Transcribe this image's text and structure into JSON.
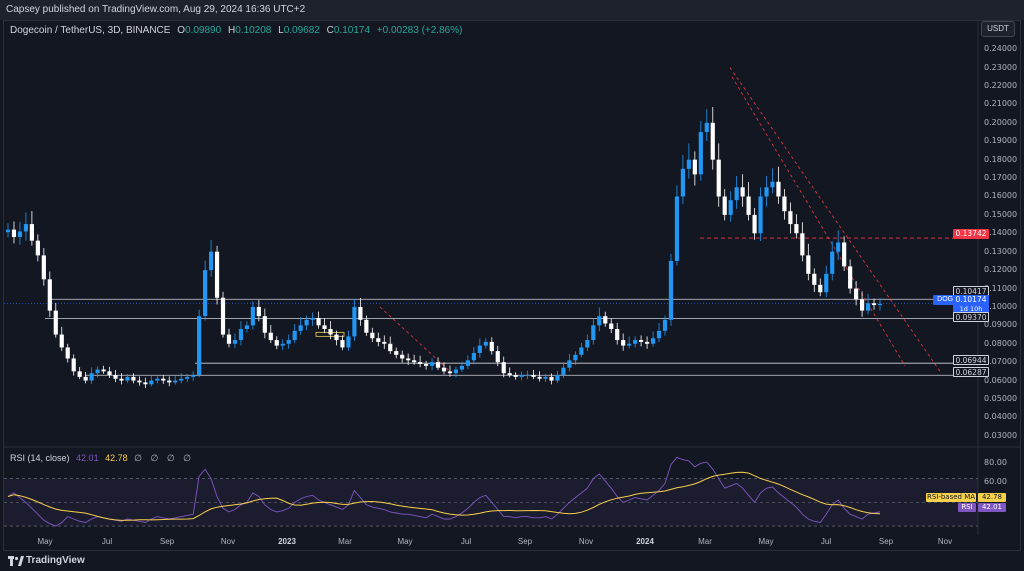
{
  "header": {
    "published": "Capsey published on TradingView.com, Aug 29, 2024 16:36 UTC+2"
  },
  "legend": {
    "symbol": "Dogecoin / TetherUS, 3D, BINANCE",
    "open_key": "O",
    "open": "0.09890",
    "high_key": "H",
    "high": "0.10208",
    "low_key": "L",
    "low": "0.09682",
    "close_key": "C",
    "close": "0.10174",
    "change": "+0.00283 (+2.86%)"
  },
  "currency_button": "USDT",
  "price_axis": [
    "0.24000",
    "0.23000",
    "0.22000",
    "0.21000",
    "0.20000",
    "0.19000",
    "0.18000",
    "0.17000",
    "0.16000",
    "0.15000",
    "0.14000",
    "0.13000",
    "0.12000",
    "0.11000",
    "0.10000",
    "0.09000",
    "0.08000",
    "0.07000",
    "0.06000",
    "0.05000",
    "0.04000",
    "0.03000"
  ],
  "level_tags": {
    "resistance_red": "0.13742",
    "level_1": "0.10417",
    "current": "0.10174",
    "countdown": "1d 10h",
    "level_2": "0.09370",
    "level_3": "0.06944",
    "level_4": "0.06287"
  },
  "symbol_tag": "DOGEUSDT",
  "rsi": {
    "title": "RSI (14, close)",
    "value": "42.01",
    "ma_value": "42.78",
    "extra": "∅ ∅ ∅ ∅",
    "axis": [
      "80.00",
      "60.00"
    ],
    "ma_label": "RSI-based MA",
    "rsi_label": "RSI",
    "ma_tag_value": "42.78",
    "rsi_tag_value": "42.01"
  },
  "time_axis": [
    {
      "label": "May",
      "bold": false
    },
    {
      "label": "Jul",
      "bold": false
    },
    {
      "label": "Sep",
      "bold": false
    },
    {
      "label": "Nov",
      "bold": false
    },
    {
      "label": "2023",
      "bold": true
    },
    {
      "label": "Mar",
      "bold": false
    },
    {
      "label": "May",
      "bold": false
    },
    {
      "label": "Jul",
      "bold": false
    },
    {
      "label": "Sep",
      "bold": false
    },
    {
      "label": "Nov",
      "bold": false
    },
    {
      "label": "2024",
      "bold": true
    },
    {
      "label": "Mar",
      "bold": false
    },
    {
      "label": "May",
      "bold": false
    },
    {
      "label": "Jul",
      "bold": false
    },
    {
      "label": "Sep",
      "bold": false
    },
    {
      "label": "Nov",
      "bold": false
    }
  ],
  "footer": {
    "brand": "TradingView"
  },
  "colors": {
    "bg": "#131722",
    "up": "#2196f3",
    "down": "#ffffff",
    "rsi": "#7e57c2",
    "rsi_ma": "#f7d04c",
    "resistance": "#f23645",
    "accent": "#2962ff"
  },
  "chart_data": {
    "type": "candlestick",
    "series": [
      {
        "name": "DOGEUSDT",
        "close": [
          0.142,
          0.138,
          0.141,
          0.145,
          0.136,
          0.128,
          0.115,
          0.098,
          0.085,
          0.078,
          0.072,
          0.065,
          0.062,
          0.06,
          0.064,
          0.066,
          0.065,
          0.063,
          0.061,
          0.06,
          0.062,
          0.06,
          0.059,
          0.058,
          0.06,
          0.061,
          0.06,
          0.059,
          0.06,
          0.061,
          0.062,
          0.063,
          0.095,
          0.12,
          0.13,
          0.105,
          0.085,
          0.08,
          0.082,
          0.088,
          0.09,
          0.1,
          0.095,
          0.086,
          0.082,
          0.079,
          0.08,
          0.082,
          0.087,
          0.09,
          0.093,
          0.094,
          0.09,
          0.088,
          0.085,
          0.082,
          0.078,
          0.084,
          0.1,
          0.093,
          0.086,
          0.083,
          0.081,
          0.08,
          0.076,
          0.074,
          0.072,
          0.071,
          0.07,
          0.069,
          0.068,
          0.07,
          0.067,
          0.065,
          0.064,
          0.066,
          0.068,
          0.071,
          0.075,
          0.079,
          0.081,
          0.076,
          0.07,
          0.064,
          0.063,
          0.062,
          0.063,
          0.063,
          0.062,
          0.061,
          0.062,
          0.06,
          0.063,
          0.067,
          0.071,
          0.074,
          0.078,
          0.082,
          0.09,
          0.095,
          0.091,
          0.088,
          0.082,
          0.079,
          0.08,
          0.082,
          0.081,
          0.08,
          0.083,
          0.087,
          0.093,
          0.125,
          0.16,
          0.175,
          0.18,
          0.172,
          0.195,
          0.2,
          0.18,
          0.16,
          0.15,
          0.158,
          0.165,
          0.16,
          0.15,
          0.14,
          0.16,
          0.165,
          0.168,
          0.16,
          0.152,
          0.145,
          0.14,
          0.128,
          0.118,
          0.112,
          0.108,
          0.118,
          0.13,
          0.135,
          0.122,
          0.11,
          0.104,
          0.098,
          0.102,
          0.101,
          0.1017
        ]
      }
    ],
    "ylim": [
      0.025,
      0.245
    ],
    "horizontal_levels": [
      0.13742,
      0.10417,
      0.0937,
      0.06944,
      0.06287
    ],
    "rsi": {
      "rsi": [
        55,
        58,
        54,
        50,
        45,
        40,
        35,
        32,
        30,
        33,
        38,
        36,
        34,
        33,
        36,
        38,
        37,
        36,
        35,
        34,
        36,
        35,
        34,
        33,
        36,
        38,
        37,
        36,
        37,
        38,
        39,
        40,
        72,
        78,
        70,
        55,
        45,
        42,
        44,
        48,
        50,
        58,
        55,
        48,
        44,
        42,
        43,
        45,
        50,
        53,
        55,
        56,
        52,
        50,
        48,
        46,
        44,
        48,
        60,
        54,
        48,
        46,
        45,
        44,
        42,
        41,
        40,
        40,
        39,
        38,
        37,
        40,
        38,
        36,
        36,
        38,
        41,
        45,
        50,
        54,
        56,
        50,
        44,
        38,
        38,
        37,
        38,
        38,
        37,
        37,
        38,
        36,
        40,
        45,
        50,
        54,
        58,
        62,
        70,
        74,
        68,
        62,
        55,
        50,
        52,
        54,
        53,
        52,
        56,
        60,
        66,
        82,
        88,
        86,
        85,
        80,
        83,
        84,
        78,
        70,
        62,
        64,
        66,
        62,
        56,
        50,
        58,
        62,
        63,
        58,
        54,
        50,
        46,
        40,
        36,
        34,
        33,
        40,
        48,
        52,
        45,
        40,
        38,
        36,
        40,
        41,
        42.01
      ],
      "ma_end": 42.78,
      "ylim": [
        25,
        90
      ],
      "levels": [
        70,
        50,
        30
      ]
    }
  }
}
